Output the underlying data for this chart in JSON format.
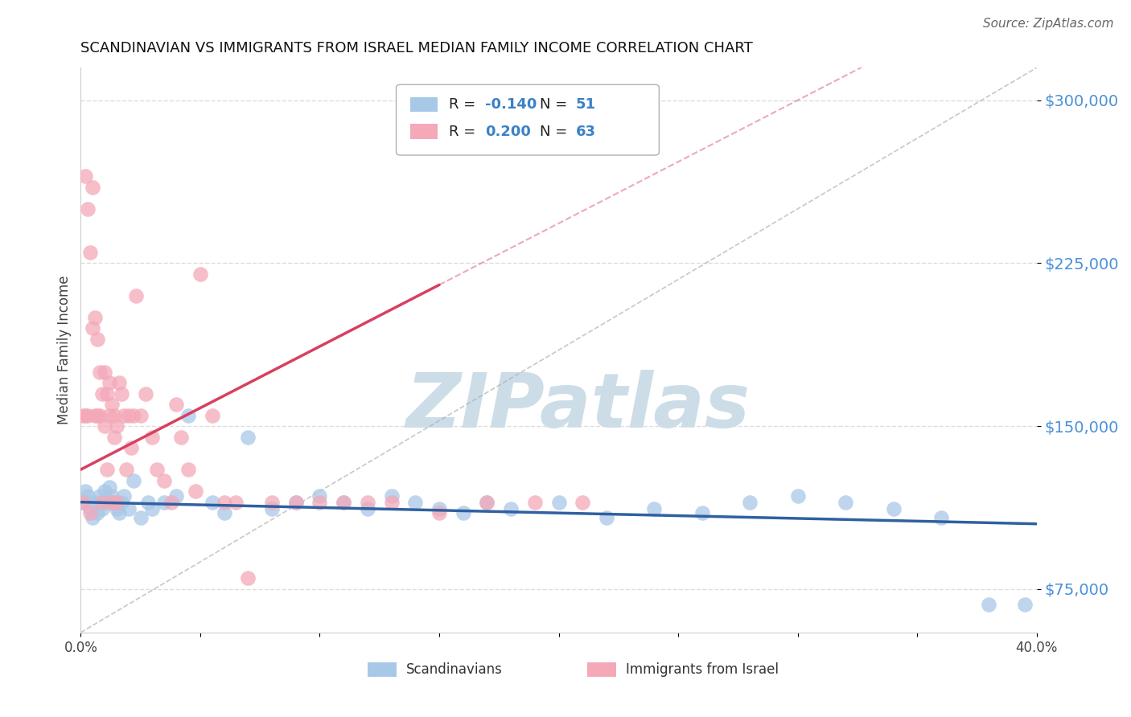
{
  "title": "SCANDINAVIAN VS IMMIGRANTS FROM ISRAEL MEDIAN FAMILY INCOME CORRELATION CHART",
  "source": "Source: ZipAtlas.com",
  "ylabel": "Median Family Income",
  "xlim": [
    0.0,
    0.4
  ],
  "ylim": [
    55000,
    315000
  ],
  "xticks": [
    0.0,
    0.05,
    0.1,
    0.15,
    0.2,
    0.25,
    0.3,
    0.35,
    0.4
  ],
  "xtick_labels": [
    "0.0%",
    "",
    "",
    "",
    "",
    "",
    "",
    "",
    "40.0%"
  ],
  "ytick_positions": [
    75000,
    150000,
    225000,
    300000
  ],
  "ytick_labels": [
    "$75,000",
    "$150,000",
    "$225,000",
    "$300,000"
  ],
  "blue_R": -0.14,
  "blue_N": 51,
  "pink_R": 0.2,
  "pink_N": 63,
  "blue_color": "#a8c8e8",
  "pink_color": "#f4a8b8",
  "blue_line_color": "#3060a0",
  "pink_line_color": "#d84060",
  "watermark_text": "ZIPatlas",
  "watermark_color": "#ccdde8",
  "blue_scatter_x": [
    0.001,
    0.002,
    0.003,
    0.004,
    0.005,
    0.006,
    0.007,
    0.008,
    0.009,
    0.01,
    0.011,
    0.012,
    0.013,
    0.014,
    0.015,
    0.016,
    0.017,
    0.018,
    0.02,
    0.022,
    0.025,
    0.028,
    0.03,
    0.035,
    0.04,
    0.045,
    0.055,
    0.06,
    0.07,
    0.08,
    0.09,
    0.1,
    0.11,
    0.12,
    0.13,
    0.14,
    0.15,
    0.16,
    0.17,
    0.18,
    0.2,
    0.22,
    0.24,
    0.26,
    0.28,
    0.3,
    0.32,
    0.34,
    0.36,
    0.38,
    0.395
  ],
  "blue_scatter_y": [
    115000,
    120000,
    118000,
    112000,
    108000,
    115000,
    110000,
    118000,
    112000,
    120000,
    115000,
    122000,
    118000,
    115000,
    112000,
    110000,
    115000,
    118000,
    112000,
    125000,
    108000,
    115000,
    112000,
    115000,
    118000,
    155000,
    115000,
    110000,
    145000,
    112000,
    115000,
    118000,
    115000,
    112000,
    118000,
    115000,
    112000,
    110000,
    115000,
    112000,
    115000,
    108000,
    112000,
    110000,
    115000,
    118000,
    115000,
    112000,
    108000,
    68000,
    68000
  ],
  "pink_scatter_x": [
    0.001,
    0.001,
    0.002,
    0.002,
    0.003,
    0.003,
    0.004,
    0.004,
    0.005,
    0.005,
    0.006,
    0.006,
    0.007,
    0.007,
    0.008,
    0.008,
    0.009,
    0.009,
    0.01,
    0.01,
    0.011,
    0.011,
    0.012,
    0.012,
    0.013,
    0.013,
    0.014,
    0.014,
    0.015,
    0.015,
    0.016,
    0.017,
    0.018,
    0.019,
    0.02,
    0.021,
    0.022,
    0.023,
    0.025,
    0.027,
    0.03,
    0.032,
    0.035,
    0.038,
    0.04,
    0.042,
    0.045,
    0.048,
    0.05,
    0.055,
    0.06,
    0.065,
    0.07,
    0.08,
    0.09,
    0.1,
    0.11,
    0.12,
    0.13,
    0.15,
    0.17,
    0.19,
    0.21
  ],
  "pink_scatter_y": [
    115000,
    155000,
    265000,
    155000,
    250000,
    155000,
    230000,
    110000,
    195000,
    260000,
    200000,
    155000,
    190000,
    155000,
    175000,
    155000,
    165000,
    115000,
    175000,
    150000,
    165000,
    130000,
    170000,
    155000,
    160000,
    115000,
    155000,
    145000,
    150000,
    115000,
    170000,
    165000,
    155000,
    130000,
    155000,
    140000,
    155000,
    210000,
    155000,
    165000,
    145000,
    130000,
    125000,
    115000,
    160000,
    145000,
    130000,
    120000,
    220000,
    155000,
    115000,
    115000,
    80000,
    115000,
    115000,
    115000,
    115000,
    115000,
    115000,
    110000,
    115000,
    115000,
    115000
  ]
}
